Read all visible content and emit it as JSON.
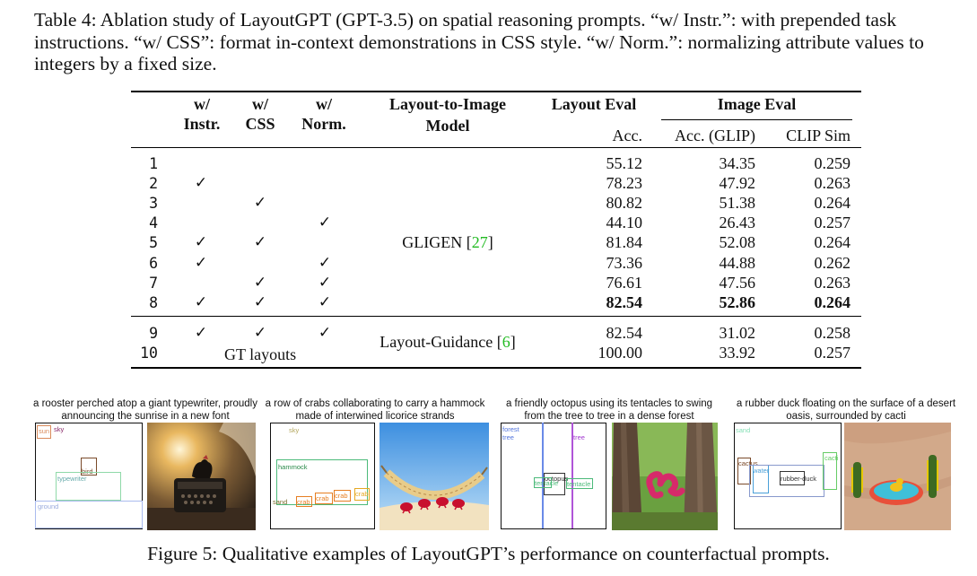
{
  "caption": "Table 4: Ablation study of LayoutGPT (GPT-3.5) on spatial reasoning prompts. “w/ Instr.”: with prepended task instructions. “w/ CSS”: format in-context demonstrations in CSS style. “w/ Norm.”: normalizing attribute values to integers by a fixed size.",
  "table": {
    "headers": {
      "instr_1": "w/",
      "instr_2": "Instr.",
      "css_1": "w/",
      "css_2": "CSS",
      "norm_1": "w/",
      "norm_2": "Norm.",
      "model_1": "Layout-to-Image",
      "model_2": "Model",
      "layout_eval": "Layout Eval",
      "layout_acc": "Acc.",
      "image_eval": "Image Eval",
      "image_acc": "Acc. (GLIP)",
      "clip": "CLIP Sim"
    },
    "check_symbol": "✓",
    "rows": [
      {
        "id": "1",
        "instr": false,
        "css": false,
        "norm": false,
        "layout_acc": "55.12",
        "image_acc": "34.35",
        "clip": "0.259"
      },
      {
        "id": "2",
        "instr": true,
        "css": false,
        "norm": false,
        "layout_acc": "78.23",
        "image_acc": "47.92",
        "clip": "0.263"
      },
      {
        "id": "3",
        "instr": false,
        "css": true,
        "norm": false,
        "layout_acc": "80.82",
        "image_acc": "51.38",
        "clip": "0.264"
      },
      {
        "id": "4",
        "instr": false,
        "css": false,
        "norm": true,
        "layout_acc": "44.10",
        "image_acc": "26.43",
        "clip": "0.257"
      },
      {
        "id": "5",
        "instr": true,
        "css": true,
        "norm": false,
        "layout_acc": "81.84",
        "image_acc": "52.08",
        "clip": "0.264"
      },
      {
        "id": "6",
        "instr": true,
        "css": false,
        "norm": true,
        "layout_acc": "73.36",
        "image_acc": "44.88",
        "clip": "0.262"
      },
      {
        "id": "7",
        "instr": false,
        "css": true,
        "norm": true,
        "layout_acc": "76.61",
        "image_acc": "47.56",
        "clip": "0.263"
      },
      {
        "id": "8",
        "instr": true,
        "css": true,
        "norm": true,
        "layout_acc": "82.54",
        "image_acc": "52.86",
        "clip": "0.264",
        "bold": true
      },
      {
        "id": "9",
        "instr": true,
        "css": true,
        "norm": true,
        "layout_acc": "82.54",
        "image_acc": "31.02",
        "clip": "0.258"
      },
      {
        "id": "10",
        "gt_label": "GT layouts",
        "layout_acc": "100.00",
        "image_acc": "33.92",
        "clip": "0.257"
      }
    ],
    "group1_model": "GLIGEN [",
    "group1_cite": "27",
    "group1_close": "]",
    "group2_model": "Layout-Guidance [",
    "group2_cite": "6",
    "group2_close": "]"
  },
  "figure": {
    "examples": [
      {
        "prompt": "a rooster perched atop a giant typewriter, proudly announcing the sunrise in a new font",
        "labels": {
          "sun": "sun",
          "sky": "sky",
          "bird": "bird",
          "typewriter": "typewriter",
          "ground": "ground"
        }
      },
      {
        "prompt": "a row of crabs collaborating to carry a hammock made of interwined licorice strands",
        "labels": {
          "sky": "sky",
          "hammock": "hammock",
          "sand": "sand",
          "crab1": "crab",
          "crab2": "crab",
          "crab3": "crab",
          "crab4": "crab"
        }
      },
      {
        "prompt": "a friendly octopus using its tentacles to swing from the tree to tree in a dense forest",
        "labels": {
          "forest": "forest",
          "tree1": "tree",
          "tree2": "tree",
          "octopus": "octopus",
          "tentacle1": "tentacle",
          "tentacle2": "tentacle"
        }
      },
      {
        "prompt": "a rubber duck floating on the surface of a desert oasis, surrounded by cacti",
        "labels": {
          "sand": "sand",
          "cactus1": "cactus",
          "cactus2": "cacti",
          "water": "water",
          "duck": "rubber-duck"
        }
      }
    ],
    "caption": "Figure 5: Qualitative examples of LayoutGPT’s performance on counterfactual prompts."
  }
}
